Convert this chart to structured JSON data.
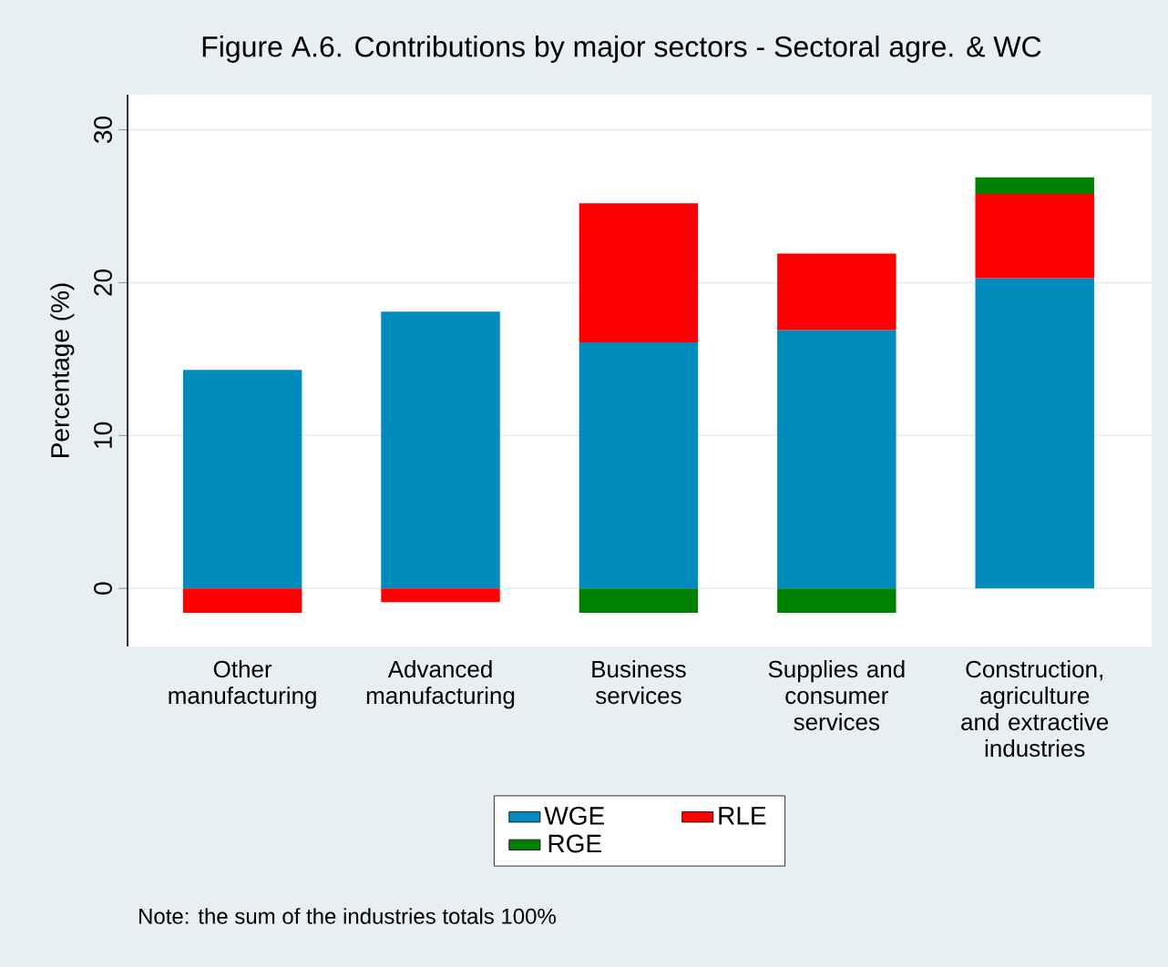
{
  "chart_data": {
    "type": "bar",
    "title": "Figure A.6. Contributions by major sectors - Sectoral agre. & WC",
    "ylabel": "Percentage (%)",
    "categories": [
      "Other manufacturing",
      "Advanced manufacturing",
      "Business services",
      "Supplies and consumer services",
      "Construction, agriculture and extractive industries"
    ],
    "series": [
      {
        "name": "WGE",
        "color": "#008bbc",
        "values": [
          14.3,
          18.1,
          16.1,
          16.9,
          20.3
        ]
      },
      {
        "name": "RLE",
        "color": "#ff0000",
        "values": [
          -1.6,
          -0.9,
          9.1,
          5.0,
          5.5
        ]
      },
      {
        "name": "RGE",
        "color": "#008000",
        "values": [
          null,
          null,
          -1.6,
          -1.6,
          1.1
        ]
      }
    ],
    "stacked": true,
    "ylim": [
      -3.8,
      32.3
    ],
    "yticks": [
      0,
      10,
      20,
      30
    ],
    "grid": "y",
    "legend": "bottom",
    "annotations": [
      "Note: the sum of the industries totals 100%"
    ]
  }
}
